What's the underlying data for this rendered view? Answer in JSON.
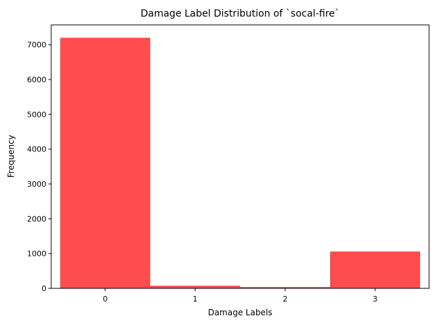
{
  "chart_data": {
    "type": "bar",
    "title": "Damage Label Distribution of `socal-fire`",
    "xlabel": "Damage Labels",
    "ylabel": "Frequency",
    "categories": [
      "0",
      "1",
      "2",
      "3"
    ],
    "values": [
      7200,
      75,
      40,
      1060
    ],
    "ylim": [
      0,
      7570
    ],
    "yticks": [
      0,
      1000,
      2000,
      3000,
      4000,
      5000,
      6000,
      7000
    ],
    "grid": false,
    "bar_color": "#ff4c4c"
  }
}
